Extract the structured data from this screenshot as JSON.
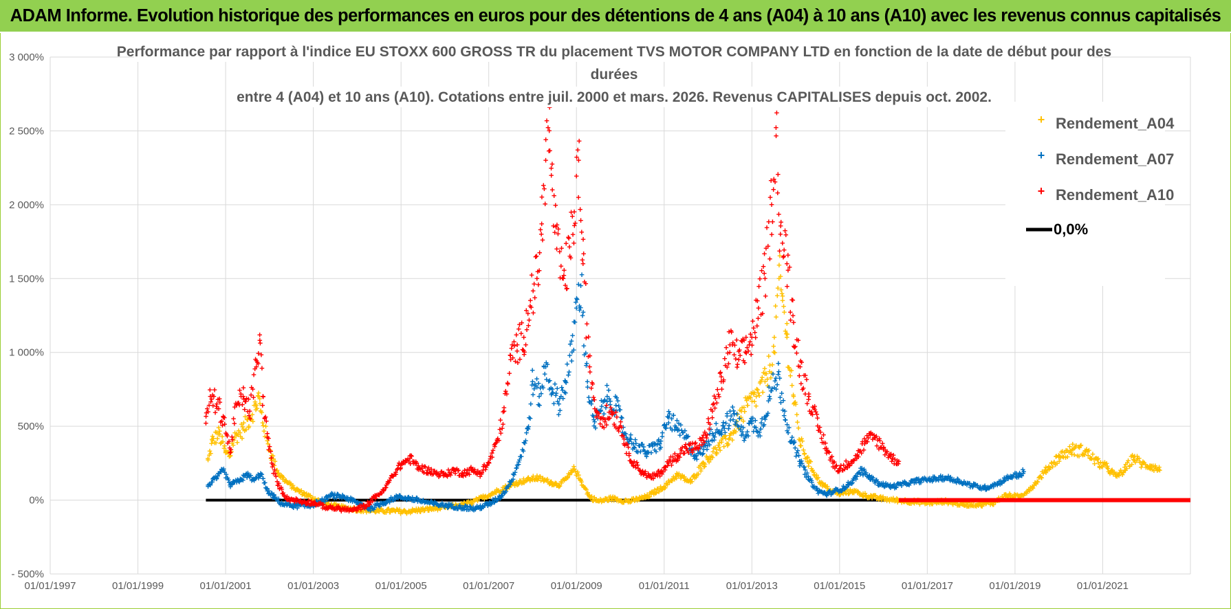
{
  "banner": {
    "title": "ADAM Informe. Evolution historique des performances en euros pour des détentions de 4 ans (A04) à 10 ans (A10) avec les revenus connus capitalisés"
  },
  "chart_data": {
    "type": "scatter",
    "title_lines": [
      "Performance par rapport à l'indice EU STOXX 600 GROSS TR  du placement TVS MOTOR COMPANY LTD en fonction de la date de début pour des",
      "durées",
      "entre 4 (A04) et 10 ans (A10). Cotations entre juil. 2000 et mars. 2026. Revenus CAPITALISES depuis oct. 2002."
    ],
    "x_axis": {
      "min": 1997.0,
      "max": 2023.0,
      "ticks": [
        1997,
        1999,
        2001,
        2003,
        2005,
        2007,
        2009,
        2011,
        2013,
        2015,
        2017,
        2019,
        2021,
        2023
      ],
      "tick_labels": [
        "01/01/1997",
        "01/01/1999",
        "01/01/2001",
        "01/01/2003",
        "01/01/2005",
        "01/01/2007",
        "01/01/2009",
        "01/01/2011",
        "01/01/2013",
        "01/01/2015",
        "01/01/2017",
        "01/01/2019",
        "01/01/2021",
        ""
      ]
    },
    "y_axis": {
      "min": -500,
      "max": 3000,
      "ticks": [
        -500,
        0,
        500,
        1000,
        1500,
        2000,
        2500,
        3000
      ],
      "tick_labels": [
        "- 500%",
        "0%",
        "500%",
        "1 000%",
        "1 500%",
        "2 000%",
        "2 500%",
        "3 000%"
      ]
    },
    "legend": {
      "position": "top-right",
      "entries": [
        "Rendement_A04",
        "Rendement_A07",
        "Rendement_A10",
        "0,0%"
      ]
    },
    "series": [
      {
        "name": "Rendement_A04",
        "color": "#ffc000",
        "marker": "+",
        "points": [
          [
            2000.6,
            270
          ],
          [
            2000.7,
            400
          ],
          [
            2000.85,
            450
          ],
          [
            2001.0,
            320
          ],
          [
            2001.1,
            300
          ],
          [
            2001.2,
            420
          ],
          [
            2001.4,
            480
          ],
          [
            2001.55,
            560
          ],
          [
            2001.7,
            640
          ],
          [
            2001.75,
            700
          ],
          [
            2001.8,
            600
          ],
          [
            2001.95,
            400
          ],
          [
            2002.05,
            300
          ],
          [
            2002.2,
            180
          ],
          [
            2002.4,
            120
          ],
          [
            2002.6,
            70
          ],
          [
            2002.8,
            40
          ],
          [
            2003.0,
            10
          ],
          [
            2003.3,
            -30
          ],
          [
            2003.6,
            -50
          ],
          [
            2003.9,
            -60
          ],
          [
            2004.2,
            -70
          ],
          [
            2004.5,
            -75
          ],
          [
            2004.8,
            -75
          ],
          [
            2005.1,
            -80
          ],
          [
            2005.4,
            -70
          ],
          [
            2005.7,
            -60
          ],
          [
            2006.0,
            -50
          ],
          [
            2006.3,
            -40
          ],
          [
            2006.6,
            -20
          ],
          [
            2006.9,
            20
          ],
          [
            2007.2,
            60
          ],
          [
            2007.5,
            100
          ],
          [
            2007.8,
            130
          ],
          [
            2008.1,
            150
          ],
          [
            2008.4,
            120
          ],
          [
            2008.6,
            100
          ],
          [
            2008.8,
            150
          ],
          [
            2008.95,
            210
          ],
          [
            2009.1,
            130
          ],
          [
            2009.3,
            20
          ],
          [
            2009.5,
            -10
          ],
          [
            2009.8,
            10
          ],
          [
            2010.2,
            -10
          ],
          [
            2010.6,
            20
          ],
          [
            2011.0,
            90
          ],
          [
            2011.3,
            170
          ],
          [
            2011.6,
            120
          ],
          [
            2011.9,
            250
          ],
          [
            2012.2,
            340
          ],
          [
            2012.5,
            420
          ],
          [
            2012.75,
            560
          ],
          [
            2012.9,
            640
          ],
          [
            2013.1,
            700
          ],
          [
            2013.3,
            800
          ],
          [
            2013.5,
            1000
          ],
          [
            2013.62,
            1500
          ],
          [
            2013.7,
            1350
          ],
          [
            2013.8,
            1100
          ],
          [
            2013.95,
            700
          ],
          [
            2014.1,
            400
          ],
          [
            2014.3,
            250
          ],
          [
            2014.55,
            120
          ],
          [
            2014.8,
            60
          ],
          [
            2015.0,
            40
          ],
          [
            2015.3,
            60
          ],
          [
            2015.6,
            30
          ],
          [
            2015.9,
            10
          ],
          [
            2016.2,
            0
          ],
          [
            2016.6,
            -10
          ],
          [
            2017.0,
            -20
          ],
          [
            2017.4,
            -10
          ],
          [
            2017.8,
            -30
          ],
          [
            2018.2,
            -30
          ],
          [
            2018.5,
            -20
          ],
          [
            2018.8,
            30
          ],
          [
            2019.1,
            20
          ],
          [
            2019.4,
            90
          ],
          [
            2019.7,
            200
          ],
          [
            2020.0,
            290
          ],
          [
            2020.3,
            340
          ],
          [
            2020.6,
            330
          ],
          [
            2020.9,
            250
          ],
          [
            2021.1,
            220
          ],
          [
            2021.3,
            160
          ],
          [
            2021.5,
            200
          ],
          [
            2021.7,
            290
          ],
          [
            2021.9,
            240
          ],
          [
            2022.1,
            230
          ],
          [
            2022.3,
            200
          ]
        ]
      },
      {
        "name": "Rendement_A07",
        "color": "#0070c0",
        "marker": "+",
        "points": [
          [
            2000.6,
            100
          ],
          [
            2000.8,
            150
          ],
          [
            2000.95,
            200
          ],
          [
            2001.1,
            100
          ],
          [
            2001.3,
            130
          ],
          [
            2001.5,
            170
          ],
          [
            2001.65,
            130
          ],
          [
            2001.8,
            180
          ],
          [
            2001.95,
            60
          ],
          [
            2002.1,
            20
          ],
          [
            2002.3,
            -30
          ],
          [
            2002.6,
            -40
          ],
          [
            2002.9,
            -40
          ],
          [
            2003.2,
            -10
          ],
          [
            2003.4,
            30
          ],
          [
            2003.7,
            20
          ],
          [
            2004.0,
            -20
          ],
          [
            2004.3,
            -60
          ],
          [
            2004.6,
            -20
          ],
          [
            2004.9,
            20
          ],
          [
            2005.2,
            10
          ],
          [
            2005.5,
            -10
          ],
          [
            2005.8,
            -30
          ],
          [
            2006.1,
            -40
          ],
          [
            2006.4,
            -50
          ],
          [
            2006.7,
            -60
          ],
          [
            2007.0,
            -30
          ],
          [
            2007.3,
            30
          ],
          [
            2007.5,
            120
          ],
          [
            2007.7,
            270
          ],
          [
            2007.9,
            480
          ],
          [
            2008.0,
            800
          ],
          [
            2008.15,
            700
          ],
          [
            2008.3,
            900
          ],
          [
            2008.45,
            750
          ],
          [
            2008.6,
            650
          ],
          [
            2008.75,
            800
          ],
          [
            2008.9,
            1000
          ],
          [
            2009.0,
            1300
          ],
          [
            2009.1,
            1450
          ],
          [
            2009.25,
            800
          ],
          [
            2009.4,
            500
          ],
          [
            2009.55,
            600
          ],
          [
            2009.7,
            700
          ],
          [
            2009.9,
            640
          ],
          [
            2010.1,
            450
          ],
          [
            2010.3,
            380
          ],
          [
            2010.6,
            320
          ],
          [
            2010.9,
            380
          ],
          [
            2011.1,
            560
          ],
          [
            2011.3,
            480
          ],
          [
            2011.5,
            420
          ],
          [
            2011.7,
            300
          ],
          [
            2011.9,
            340
          ],
          [
            2012.1,
            450
          ],
          [
            2012.35,
            500
          ],
          [
            2012.6,
            580
          ],
          [
            2012.8,
            440
          ],
          [
            2013.0,
            520
          ],
          [
            2013.2,
            480
          ],
          [
            2013.4,
            700
          ],
          [
            2013.6,
            850
          ],
          [
            2013.75,
            600
          ],
          [
            2013.9,
            400
          ],
          [
            2014.1,
            260
          ],
          [
            2014.3,
            140
          ],
          [
            2014.5,
            60
          ],
          [
            2014.7,
            40
          ],
          [
            2014.9,
            60
          ],
          [
            2015.1,
            80
          ],
          [
            2015.3,
            130
          ],
          [
            2015.5,
            200
          ],
          [
            2015.7,
            150
          ],
          [
            2015.9,
            110
          ],
          [
            2016.2,
            90
          ],
          [
            2016.5,
            110
          ],
          [
            2016.8,
            130
          ],
          [
            2017.1,
            140
          ],
          [
            2017.4,
            150
          ],
          [
            2017.7,
            130
          ],
          [
            2018.0,
            100
          ],
          [
            2018.3,
            80
          ],
          [
            2018.6,
            110
          ],
          [
            2018.9,
            160
          ],
          [
            2019.1,
            170
          ],
          [
            2019.2,
            190
          ]
        ]
      },
      {
        "name": "Rendement_A10",
        "color": "#ff0000",
        "marker": "+",
        "points": [
          [
            2000.55,
            520
          ],
          [
            2000.65,
            700
          ],
          [
            2000.8,
            650
          ],
          [
            2000.95,
            560
          ],
          [
            2001.1,
            320
          ],
          [
            2001.25,
            640
          ],
          [
            2001.4,
            700
          ],
          [
            2001.55,
            600
          ],
          [
            2001.7,
            900
          ],
          [
            2001.78,
            1080
          ],
          [
            2001.85,
            700
          ],
          [
            2001.95,
            450
          ],
          [
            2002.05,
            250
          ],
          [
            2002.2,
            100
          ],
          [
            2002.4,
            10
          ],
          [
            2002.7,
            -10
          ],
          [
            2003.0,
            -20
          ],
          [
            2003.3,
            -50
          ],
          [
            2003.6,
            -60
          ],
          [
            2003.9,
            -70
          ],
          [
            2004.2,
            -40
          ],
          [
            2004.4,
            20
          ],
          [
            2004.6,
            60
          ],
          [
            2004.8,
            160
          ],
          [
            2005.0,
            240
          ],
          [
            2005.2,
            280
          ],
          [
            2005.4,
            220
          ],
          [
            2005.6,
            200
          ],
          [
            2005.8,
            180
          ],
          [
            2006.0,
            170
          ],
          [
            2006.2,
            200
          ],
          [
            2006.4,
            180
          ],
          [
            2006.6,
            200
          ],
          [
            2006.8,
            180
          ],
          [
            2007.0,
            250
          ],
          [
            2007.2,
            400
          ],
          [
            2007.35,
            600
          ],
          [
            2007.5,
            950
          ],
          [
            2007.65,
            1050
          ],
          [
            2007.8,
            1100
          ],
          [
            2007.95,
            1350
          ],
          [
            2008.1,
            1500
          ],
          [
            2008.2,
            1800
          ],
          [
            2008.3,
            2300
          ],
          [
            2008.38,
            2500
          ],
          [
            2008.45,
            2100
          ],
          [
            2008.55,
            1700
          ],
          [
            2008.7,
            1500
          ],
          [
            2008.85,
            1650
          ],
          [
            2008.95,
            1950
          ],
          [
            2009.05,
            2300
          ],
          [
            2009.15,
            1600
          ],
          [
            2009.3,
            900
          ],
          [
            2009.45,
            600
          ],
          [
            2009.6,
            550
          ],
          [
            2009.8,
            600
          ],
          [
            2010.0,
            500
          ],
          [
            2010.2,
            300
          ],
          [
            2010.45,
            200
          ],
          [
            2010.7,
            150
          ],
          [
            2010.9,
            180
          ],
          [
            2011.1,
            250
          ],
          [
            2011.3,
            300
          ],
          [
            2011.5,
            350
          ],
          [
            2011.7,
            350
          ],
          [
            2011.9,
            400
          ],
          [
            2012.1,
            600
          ],
          [
            2012.3,
            800
          ],
          [
            2012.5,
            1050
          ],
          [
            2012.7,
            950
          ],
          [
            2012.85,
            1000
          ],
          [
            2013.0,
            1100
          ],
          [
            2013.15,
            1300
          ],
          [
            2013.3,
            1500
          ],
          [
            2013.45,
            2000
          ],
          [
            2013.55,
            2520
          ],
          [
            2013.65,
            1800
          ],
          [
            2013.8,
            1600
          ],
          [
            2013.95,
            1200
          ],
          [
            2014.1,
            900
          ],
          [
            2014.3,
            700
          ],
          [
            2014.5,
            500
          ],
          [
            2014.7,
            350
          ],
          [
            2014.85,
            250
          ],
          [
            2015.0,
            200
          ],
          [
            2015.2,
            250
          ],
          [
            2015.4,
            300
          ],
          [
            2015.6,
            400
          ],
          [
            2015.8,
            420
          ],
          [
            2016.0,
            350
          ],
          [
            2016.2,
            280
          ],
          [
            2016.35,
            260
          ]
        ]
      }
    ],
    "zero_line": {
      "name": "0,0%",
      "color": "#000000",
      "x_start": 2000.55,
      "x_end": 2016.35
    },
    "a10_flat_tail": {
      "color": "#ff0000",
      "x_start": 2016.35,
      "x_end": 2023.0,
      "value": 0
    }
  }
}
